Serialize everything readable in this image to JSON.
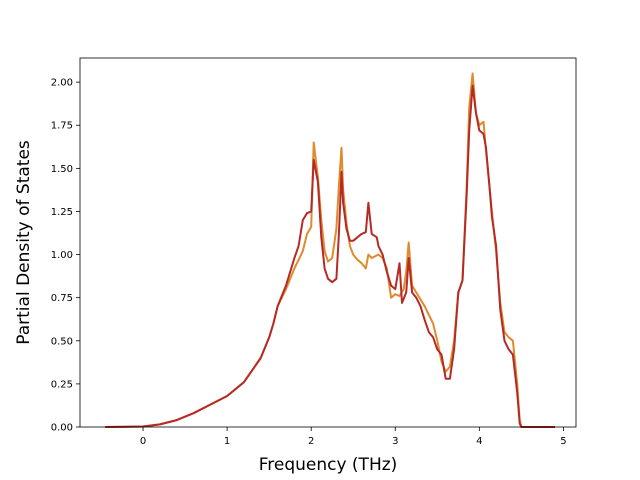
{
  "chart_data": {
    "type": "line",
    "title": "",
    "xlabel": "Frequency (THz)",
    "ylabel": "Partial Density of States",
    "xlim": [
      -0.75,
      5.15
    ],
    "ylim": [
      0,
      2.14
    ],
    "xticks": [
      0,
      1,
      2,
      3,
      4,
      5
    ],
    "xtick_labels": [
      "0",
      "1",
      "2",
      "3",
      "4",
      "5"
    ],
    "yticks": [
      0,
      0.25,
      0.5,
      0.75,
      1.0,
      1.25,
      1.5,
      1.75,
      2.0
    ],
    "ytick_labels": [
      "0.00",
      "0.25",
      "0.50",
      "0.75",
      "1.00",
      "1.25",
      "1.50",
      "1.75",
      "2.00"
    ],
    "grid": false,
    "legend": "none",
    "series": [
      {
        "color": "#e08a2c",
        "x": [
          -0.45,
          0.0,
          0.2,
          0.4,
          0.6,
          0.8,
          1.0,
          1.2,
          1.4,
          1.5,
          1.55,
          1.6,
          1.7,
          1.8,
          1.9,
          1.95,
          2.0,
          2.03,
          2.08,
          2.12,
          2.16,
          2.2,
          2.25,
          2.3,
          2.33,
          2.36,
          2.38,
          2.42,
          2.46,
          2.5,
          2.55,
          2.6,
          2.65,
          2.68,
          2.72,
          2.8,
          2.85,
          2.9,
          2.95,
          3.0,
          3.05,
          3.1,
          3.13,
          3.16,
          3.2,
          3.25,
          3.3,
          3.35,
          3.4,
          3.45,
          3.5,
          3.55,
          3.6,
          3.65,
          3.7,
          3.75,
          3.8,
          3.85,
          3.88,
          3.92,
          3.96,
          4.0,
          4.05,
          4.08,
          4.12,
          4.15,
          4.2,
          4.25,
          4.3,
          4.35,
          4.4,
          4.45,
          4.48,
          4.5,
          4.6,
          4.9
        ],
        "values": [
          0.0,
          0.003,
          0.015,
          0.04,
          0.08,
          0.13,
          0.18,
          0.26,
          0.4,
          0.52,
          0.6,
          0.7,
          0.8,
          0.92,
          1.02,
          1.12,
          1.16,
          1.65,
          1.45,
          1.2,
          1.02,
          0.96,
          0.98,
          1.15,
          1.4,
          1.62,
          1.38,
          1.18,
          1.05,
          1.0,
          0.97,
          0.95,
          0.92,
          1.0,
          0.98,
          1.0,
          0.98,
          0.92,
          0.75,
          0.77,
          0.76,
          0.8,
          0.9,
          1.07,
          0.82,
          0.78,
          0.74,
          0.7,
          0.65,
          0.6,
          0.5,
          0.38,
          0.32,
          0.35,
          0.5,
          0.78,
          0.85,
          1.4,
          1.85,
          2.05,
          1.82,
          1.75,
          1.77,
          1.6,
          1.4,
          1.25,
          1.02,
          0.72,
          0.55,
          0.52,
          0.5,
          0.25,
          0.04,
          0.0,
          0.0,
          0.0
        ]
      },
      {
        "color": "#b52a26",
        "x": [
          -0.45,
          0.0,
          0.2,
          0.4,
          0.6,
          0.8,
          1.0,
          1.2,
          1.4,
          1.5,
          1.55,
          1.6,
          1.7,
          1.8,
          1.85,
          1.9,
          1.95,
          2.0,
          2.03,
          2.08,
          2.12,
          2.16,
          2.2,
          2.25,
          2.3,
          2.33,
          2.36,
          2.38,
          2.42,
          2.46,
          2.5,
          2.55,
          2.6,
          2.65,
          2.68,
          2.72,
          2.78,
          2.8,
          2.85,
          2.9,
          2.95,
          3.0,
          3.05,
          3.08,
          3.13,
          3.16,
          3.2,
          3.25,
          3.3,
          3.35,
          3.4,
          3.45,
          3.5,
          3.55,
          3.6,
          3.65,
          3.7,
          3.75,
          3.8,
          3.85,
          3.88,
          3.92,
          3.96,
          4.0,
          4.05,
          4.08,
          4.12,
          4.15,
          4.2,
          4.25,
          4.3,
          4.35,
          4.4,
          4.45,
          4.48,
          4.5,
          4.6,
          4.9
        ],
        "values": [
          0.0,
          0.003,
          0.015,
          0.04,
          0.08,
          0.13,
          0.18,
          0.26,
          0.4,
          0.52,
          0.6,
          0.7,
          0.82,
          0.98,
          1.05,
          1.2,
          1.24,
          1.25,
          1.55,
          1.42,
          1.1,
          0.92,
          0.86,
          0.84,
          0.86,
          1.12,
          1.48,
          1.3,
          1.15,
          1.08,
          1.08,
          1.1,
          1.12,
          1.13,
          1.3,
          1.12,
          1.1,
          1.05,
          1.0,
          0.9,
          0.82,
          0.8,
          0.95,
          0.72,
          0.78,
          0.98,
          0.78,
          0.75,
          0.7,
          0.62,
          0.55,
          0.52,
          0.45,
          0.42,
          0.28,
          0.28,
          0.45,
          0.78,
          0.85,
          1.35,
          1.72,
          1.98,
          1.82,
          1.72,
          1.7,
          1.62,
          1.4,
          1.22,
          1.05,
          0.68,
          0.5,
          0.45,
          0.42,
          0.2,
          0.02,
          0.0,
          0.0,
          0.0
        ]
      }
    ]
  }
}
